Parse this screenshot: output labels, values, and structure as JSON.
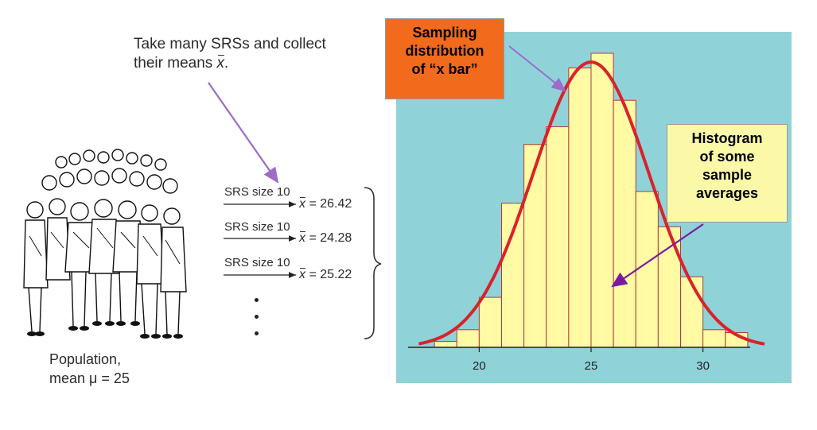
{
  "caption": {
    "line1": "Take many SRSs and collect",
    "line2_prefix": "their means ",
    "line2_symbol": "x",
    "line2_suffix": "."
  },
  "population": {
    "line1": "Population,",
    "line2": "mean μ = 25",
    "image_icon": "crowd-of-people-illustration"
  },
  "samples": [
    {
      "label": "SRS size 10",
      "symbol": "x",
      "value": "= 26.42"
    },
    {
      "label": "SRS size 10",
      "symbol": "x",
      "value": "= 24.28"
    },
    {
      "label": "SRS size 10",
      "symbol": "x",
      "value": "= 25.22"
    }
  ],
  "callouts": {
    "sampling": [
      "Sampling",
      "distribution",
      "of “x bar”"
    ],
    "histogram": [
      "Histogram",
      "of some",
      "sample",
      "averages"
    ]
  },
  "colors": {
    "panel_bg": "#8fd3d9",
    "bar_fill": "#fffaa3",
    "bar_stroke": "#b0383e",
    "curve": "#d8232a",
    "callout_orange": "#f26a1b",
    "callout_yellow": "#fbf8a8",
    "arrow_purple": "#9b6cc8",
    "arrow_dark_purple": "#7a1aa0"
  },
  "chart_data": {
    "type": "bar",
    "title": "",
    "xlabel": "",
    "ylabel": "",
    "xlim": [
      17,
      33
    ],
    "ylim": [
      0,
      1
    ],
    "x_ticks": [
      "20",
      "25",
      "30"
    ],
    "x_tick_values": [
      20,
      25,
      30
    ],
    "bin_width": 1,
    "bins_left_edges": [
      18,
      19,
      20,
      21,
      22,
      23,
      24,
      25,
      26,
      27,
      28,
      29,
      30,
      31
    ],
    "values": [
      0.02,
      0.06,
      0.17,
      0.49,
      0.69,
      0.75,
      0.95,
      1.0,
      0.84,
      0.53,
      0.41,
      0.24,
      0.06,
      0.05
    ],
    "curve": {
      "type": "normal",
      "mean": 25,
      "sd": 2.6,
      "peak": 0.97
    }
  }
}
